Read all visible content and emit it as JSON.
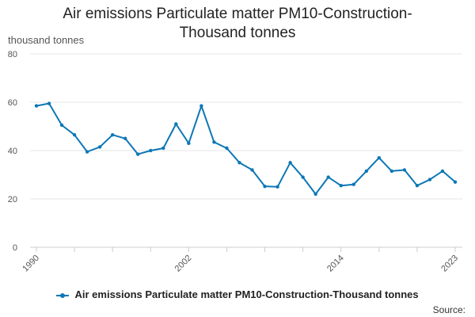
{
  "chart_data": {
    "type": "line",
    "title_line1": "Air emissions Particulate matter PM10-Construction-",
    "title_line2": "Thousand tonnes",
    "ylabel": "thousand tonnes",
    "ylim": [
      0,
      80
    ],
    "yticks": [
      0,
      20,
      40,
      60,
      80
    ],
    "xlim": [
      1990,
      2023
    ],
    "xtick_labels": [
      "1990",
      "2002",
      "2014",
      "2023"
    ],
    "x": [
      1990,
      1991,
      1992,
      1993,
      1994,
      1995,
      1996,
      1997,
      1998,
      1999,
      2000,
      2001,
      2002,
      2003,
      2004,
      2005,
      2006,
      2007,
      2008,
      2009,
      2010,
      2011,
      2012,
      2013,
      2014,
      2015,
      2016,
      2017,
      2018,
      2019,
      2020,
      2021,
      2022,
      2023
    ],
    "series": [
      {
        "name": "Air emissions Particulate matter PM10-Construction-Thousand tonnes",
        "color": "#0d77b6",
        "values": [
          58.5,
          59.5,
          50.5,
          46.5,
          39.5,
          41.5,
          46.5,
          45,
          38.5,
          40,
          41,
          51,
          43,
          58.5,
          43.5,
          41,
          35,
          32,
          25.2,
          25,
          35,
          29,
          22,
          29,
          25.5,
          26,
          31.5,
          37,
          31.5,
          32,
          25.5,
          28,
          31.5,
          27
        ]
      }
    ],
    "legend_position": "bottom",
    "source_label": "Source:"
  }
}
